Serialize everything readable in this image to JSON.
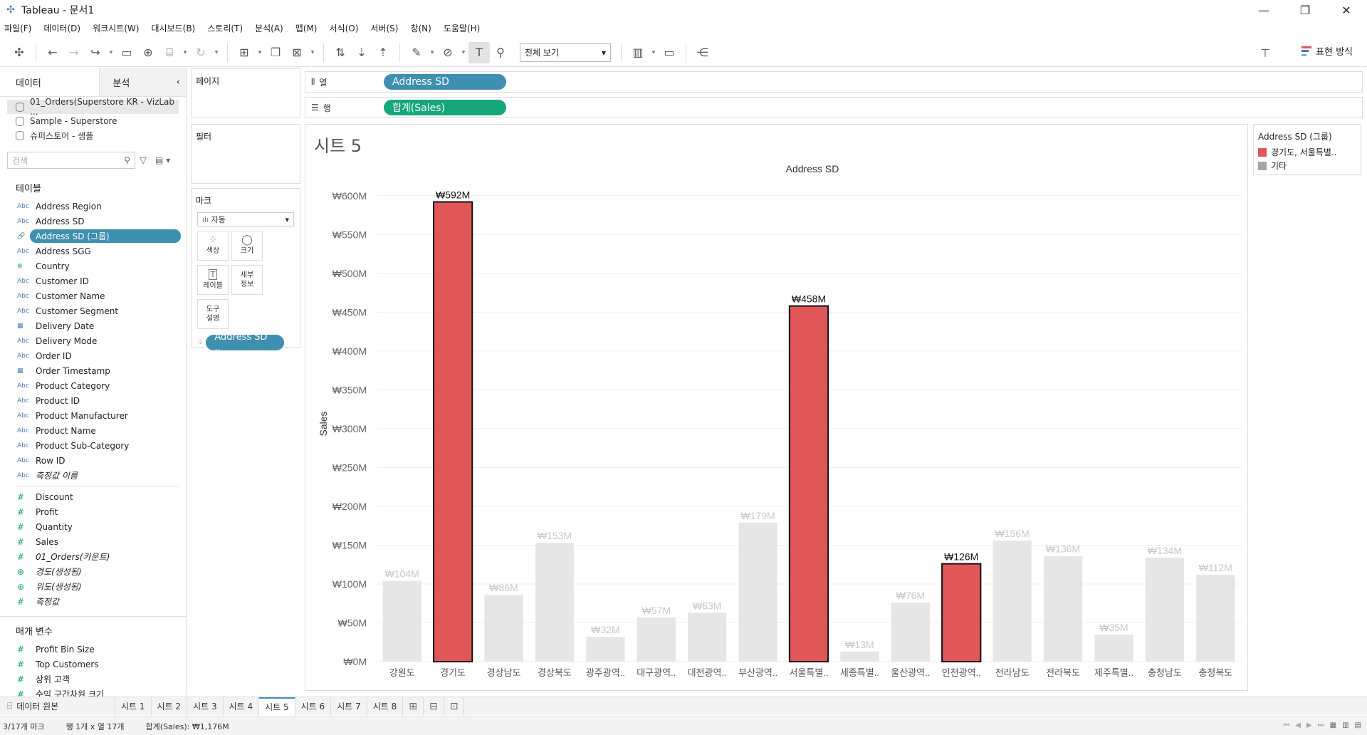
{
  "window": {
    "title": "Tableau - 문서1",
    "controls": {
      "minimize": "—",
      "restore": "❐",
      "close": "✕"
    }
  },
  "menu": [
    "파일(F)",
    "데이터(D)",
    "워크시트(W)",
    "대시보드(B)",
    "스토리(T)",
    "분석(A)",
    "맵(M)",
    "서식(O)",
    "서버(S)",
    "창(N)",
    "도움말(H)"
  ],
  "toolbar": {
    "view_select": "전체 보기",
    "show_me": "표현 방식",
    "colors": {
      "show_me_bars": [
        "#e15759",
        "#4e79a7",
        "#76b7b2"
      ]
    }
  },
  "left_panel": {
    "tab_data": "데이터",
    "tab_analysis": "분석",
    "collapse": "‹",
    "datasources": [
      {
        "name": "01_Orders(Superstore KR - VizLab ...",
        "active": true
      },
      {
        "name": "Sample - Superstore",
        "active": false
      },
      {
        "name": "슈퍼스토어 - 샘플",
        "active": false
      }
    ],
    "search_placeholder": "검색",
    "tables_title": "테이블",
    "dimensions": [
      {
        "type": "Abc",
        "name": "Address Region"
      },
      {
        "type": "Abc",
        "name": "Address SD"
      },
      {
        "type": "🔗",
        "name": "Address SD (그룹)",
        "selected": true
      },
      {
        "type": "Abc",
        "name": "Address SGG"
      },
      {
        "type": "⊕",
        "name": "Country"
      },
      {
        "type": "Abc",
        "name": "Customer ID"
      },
      {
        "type": "Abc",
        "name": "Customer Name"
      },
      {
        "type": "Abc",
        "name": "Customer Segment"
      },
      {
        "type": "▦",
        "name": "Delivery Date"
      },
      {
        "type": "Abc",
        "name": "Delivery Mode"
      },
      {
        "type": "Abc",
        "name": "Order ID"
      },
      {
        "type": "▦",
        "name": "Order Timestamp"
      },
      {
        "type": "Abc",
        "name": "Product Category"
      },
      {
        "type": "Abc",
        "name": "Product ID"
      },
      {
        "type": "Abc",
        "name": "Product Manufacturer"
      },
      {
        "type": "Abc",
        "name": "Product Name"
      },
      {
        "type": "Abc",
        "name": "Product Sub-Category"
      },
      {
        "type": "Abc",
        "name": "Row ID"
      },
      {
        "type": "Abc",
        "name": "측정값 이름",
        "italic": true
      }
    ],
    "measures": [
      {
        "type": "#",
        "name": "Discount"
      },
      {
        "type": "#",
        "name": "Profit"
      },
      {
        "type": "#",
        "name": "Quantity"
      },
      {
        "type": "#",
        "name": "Sales"
      },
      {
        "type": "#",
        "name": "01_Orders(카운트)",
        "italic": true
      },
      {
        "type": "⊕",
        "name": "경도(생성됨)",
        "italic": true
      },
      {
        "type": "⊕",
        "name": "위도(생성됨)",
        "italic": true
      },
      {
        "type": "#",
        "name": "측정값",
        "italic": true
      }
    ],
    "params_title": "매개 변수",
    "params": [
      {
        "type": "#",
        "name": "Profit Bin Size"
      },
      {
        "type": "#",
        "name": "Top Customers"
      },
      {
        "type": "#",
        "name": "상위 고객"
      },
      {
        "type": "#",
        "name": "수익 구간차원 크기"
      }
    ]
  },
  "cards": {
    "pages": "페이지",
    "filters": "필터",
    "marks": "마크",
    "mark_type": "자동",
    "mark_buttons": [
      {
        "icon": "⁘",
        "label": "색상"
      },
      {
        "icon": "◯",
        "label": "크기"
      },
      {
        "icon": "T",
        "label": "레이블"
      },
      {
        "icon": "",
        "label": "세부\n정보"
      },
      {
        "icon": "",
        "label": "도구\n설명"
      }
    ],
    "color_pill": "Address SD .."
  },
  "shelves": {
    "columns_label": "열",
    "columns_pill": "Address SD",
    "rows_label": "행",
    "rows_pill": "합계(Sales)"
  },
  "sheet": {
    "title": "시트 5"
  },
  "legend": {
    "title": "Address SD (그룹)",
    "items": [
      {
        "label": "경기도, 서울특별..",
        "color": "#e15759"
      },
      {
        "label": "기타",
        "color": "#a5a5a5"
      }
    ]
  },
  "chart_data": {
    "type": "bar",
    "title": "Address SD",
    "xlabel": "",
    "ylabel": "Sales",
    "ylim": [
      0,
      620
    ],
    "yticks": [
      0,
      50,
      100,
      150,
      200,
      250,
      300,
      350,
      400,
      450,
      500,
      550,
      600
    ],
    "ytick_labels": [
      "₩0M",
      "₩50M",
      "₩100M",
      "₩150M",
      "₩200M",
      "₩250M",
      "₩300M",
      "₩350M",
      "₩400M",
      "₩450M",
      "₩500M",
      "₩550M",
      "₩600M"
    ],
    "unit": "₩M",
    "grid": true,
    "categories": [
      "강원도",
      "경기도",
      "경상남도",
      "경상북도",
      "광주광역..",
      "대구광역..",
      "대전광역..",
      "부산광역..",
      "서울특별..",
      "세종특별..",
      "울산광역..",
      "인천광역..",
      "전라남도",
      "전라북도",
      "제주특별..",
      "충청남도",
      "충청북도"
    ],
    "values": [
      104,
      592,
      86,
      153,
      32,
      57,
      63,
      179,
      458,
      13,
      76,
      126,
      156,
      136,
      35,
      134,
      112
    ],
    "value_labels": [
      "₩104M",
      "₩592M",
      "₩86M",
      "₩153M",
      "₩32M",
      "₩57M",
      "₩63M",
      "₩179M",
      "₩458M",
      "₩13M",
      "₩76M",
      "₩126M",
      "₩156M",
      "₩136M",
      "₩35M",
      "₩134M",
      "₩112M"
    ],
    "highlighted": [
      false,
      true,
      false,
      false,
      false,
      false,
      false,
      false,
      true,
      false,
      false,
      true,
      false,
      false,
      false,
      false,
      false
    ],
    "colors": {
      "highlight": "#e15759",
      "other": "#e6e6e6",
      "other_label": "#c8c8c8"
    }
  },
  "sheet_tabs": {
    "source": "데이터 원본",
    "tabs": [
      "시트 1",
      "시트 2",
      "시트 3",
      "시트 4",
      "시트 5",
      "시트 6",
      "시트 7",
      "시트 8"
    ],
    "active": "시트 5"
  },
  "status": {
    "marks": "3/17개 마크",
    "rows_cols": "행 1개 x 열 17개",
    "sum": "합계(Sales): ₩1,176M"
  }
}
